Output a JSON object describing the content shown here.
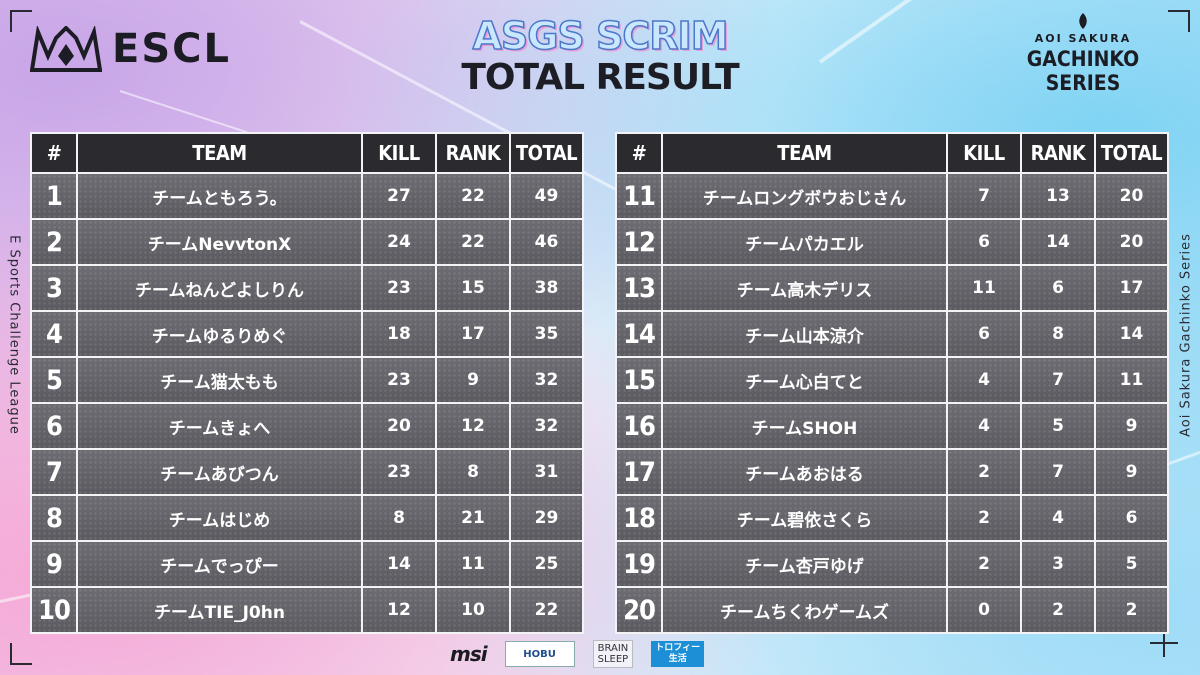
{
  "header": {
    "left_logo_text": "ESCL",
    "title_line1": "ASGS SCRIM",
    "title_line2": "TOTAL RESULT",
    "right_logo_small": "AOI SAKURA",
    "right_logo_big": "GACHINKO SERIES"
  },
  "side": {
    "left_text": "E Sports Challenge League",
    "right_text": "Aoi Sakura Gachinko Series"
  },
  "table_headers": {
    "num": "#",
    "team": "TEAM",
    "kill": "KILL",
    "rank": "RANK",
    "total": "TOTAL"
  },
  "left_table": [
    {
      "num": "1",
      "team": "チームともろう。",
      "kill": "27",
      "rank": "22",
      "total": "49"
    },
    {
      "num": "2",
      "team": "チームNevvtonX",
      "kill": "24",
      "rank": "22",
      "total": "46"
    },
    {
      "num": "3",
      "team": "チームねんどよしりん",
      "kill": "23",
      "rank": "15",
      "total": "38"
    },
    {
      "num": "4",
      "team": "チームゆるりめぐ",
      "kill": "18",
      "rank": "17",
      "total": "35"
    },
    {
      "num": "5",
      "team": "チーム猫太もも",
      "kill": "23",
      "rank": "9",
      "total": "32"
    },
    {
      "num": "6",
      "team": "チームきょへ",
      "kill": "20",
      "rank": "12",
      "total": "32"
    },
    {
      "num": "7",
      "team": "チームあびつん",
      "kill": "23",
      "rank": "8",
      "total": "31"
    },
    {
      "num": "8",
      "team": "チームはじめ",
      "kill": "8",
      "rank": "21",
      "total": "29"
    },
    {
      "num": "9",
      "team": "チームでっぴー",
      "kill": "14",
      "rank": "11",
      "total": "25"
    },
    {
      "num": "10",
      "team": "チームTIE_J0hn",
      "kill": "12",
      "rank": "10",
      "total": "22"
    }
  ],
  "right_table": [
    {
      "num": "11",
      "team": "チームロングボウおじさん",
      "kill": "7",
      "rank": "13",
      "total": "20"
    },
    {
      "num": "12",
      "team": "チームパカエル",
      "kill": "6",
      "rank": "14",
      "total": "20"
    },
    {
      "num": "13",
      "team": "チーム高木デリス",
      "kill": "11",
      "rank": "6",
      "total": "17"
    },
    {
      "num": "14",
      "team": "チーム山本涼介",
      "kill": "6",
      "rank": "8",
      "total": "14"
    },
    {
      "num": "15",
      "team": "チーム心白てと",
      "kill": "4",
      "rank": "7",
      "total": "11"
    },
    {
      "num": "16",
      "team": "チームSHOH",
      "kill": "4",
      "rank": "5",
      "total": "9"
    },
    {
      "num": "17",
      "team": "チームあおはる",
      "kill": "2",
      "rank": "7",
      "total": "9"
    },
    {
      "num": "18",
      "team": "チーム碧依さくら",
      "kill": "2",
      "rank": "4",
      "total": "6"
    },
    {
      "num": "19",
      "team": "チーム杏戸ゆげ",
      "kill": "2",
      "rank": "3",
      "total": "5"
    },
    {
      "num": "20",
      "team": "チームちくわゲームズ",
      "kill": "0",
      "rank": "2",
      "total": "2"
    }
  ],
  "sponsors": {
    "msi": "msi",
    "hobu": "HOBU",
    "brain_line1": "BRAIN",
    "brain_line2": "SLEEP",
    "trophy_line1": "トロフィー",
    "trophy_line2": "生活"
  }
}
